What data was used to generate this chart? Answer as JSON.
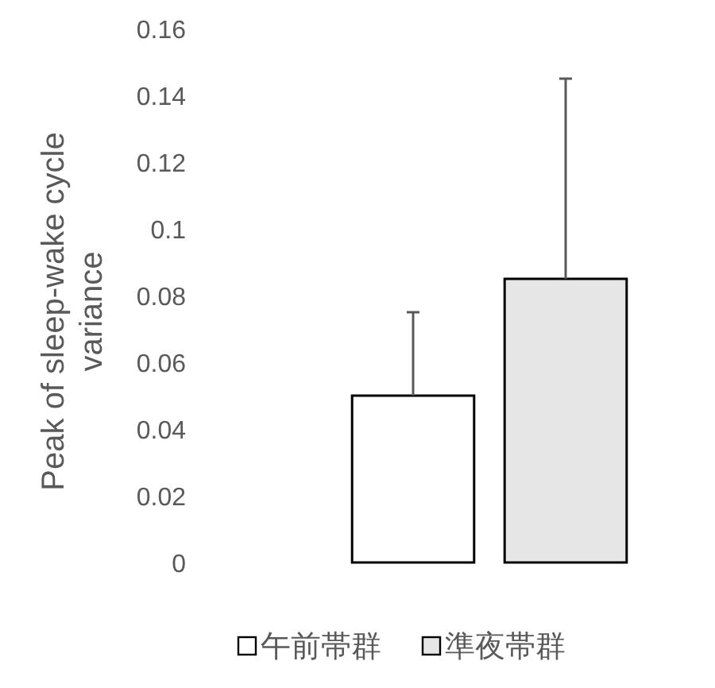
{
  "chart_data": {
    "type": "bar",
    "ylabel": "Peak of sleep-wake cycle variance",
    "categories": [
      null
    ],
    "series": [
      {
        "name": "午前帯群",
        "color": "#ffffff",
        "values": [
          0.05
        ],
        "errors": [
          [
            0.05,
            0.075
          ]
        ]
      },
      {
        "name": "準夜帯群",
        "color": "#e6e6e6",
        "values": [
          0.085
        ],
        "errors": [
          [
            0.085,
            0.145
          ]
        ]
      }
    ],
    "ylim": [
      0,
      0.16
    ],
    "yticks": [
      0,
      0.02,
      0.04,
      0.06,
      0.08,
      0.1,
      0.12,
      0.14,
      0.16
    ],
    "grid": false,
    "legend": "bottom"
  }
}
